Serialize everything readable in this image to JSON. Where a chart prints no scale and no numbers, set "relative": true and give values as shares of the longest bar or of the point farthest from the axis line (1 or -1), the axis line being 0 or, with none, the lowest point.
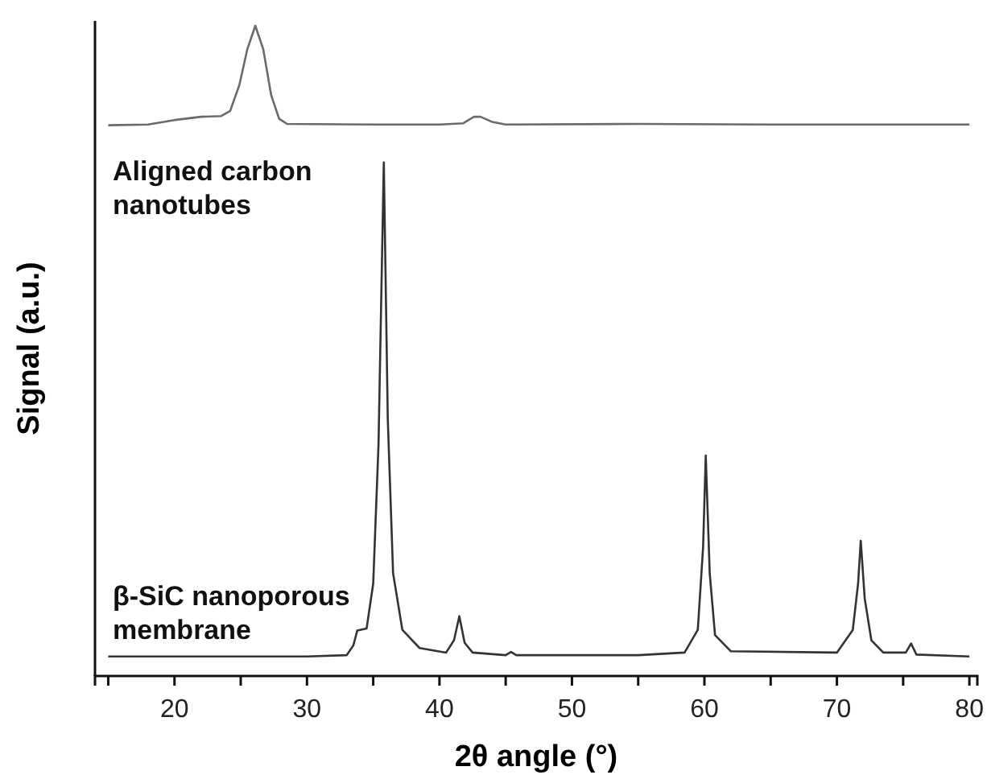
{
  "chart_data": {
    "type": "line",
    "relative": true,
    "xlabel": "2θ angle (°)",
    "ylabel": "Signal (a.u.)",
    "xlim": [
      14,
      80.6
    ],
    "xticks": [
      {
        "value": 15,
        "label": null
      },
      20,
      {
        "value": 25,
        "label": null
      },
      30,
      {
        "value": 35,
        "label": null
      },
      40,
      {
        "value": 45,
        "label": null
      },
      50,
      {
        "value": 55,
        "label": null
      },
      60,
      {
        "value": 65,
        "label": null
      },
      70,
      {
        "value": 75,
        "label": null
      },
      80
    ],
    "marker": "none",
    "line_style": "solid",
    "series": [
      {
        "name": "Aligned carbon nanotubes",
        "color": "#6a6a6a",
        "x": [
          15,
          18,
          20,
          22,
          23.5,
          24.2,
          24.9,
          25.5,
          26.1,
          26.7,
          27.3,
          27.9,
          28.5,
          35,
          40,
          41.8,
          42.6,
          43.1,
          44,
          45,
          55,
          65,
          80
        ],
        "values": [
          0.847,
          0.848,
          0.855,
          0.86,
          0.861,
          0.869,
          0.909,
          0.964,
          1.0,
          0.964,
          0.893,
          0.857,
          0.849,
          0.848,
          0.848,
          0.85,
          0.86,
          0.86,
          0.852,
          0.848,
          0.849,
          0.848,
          0.848
        ]
      },
      {
        "name": "β-SiC nanoporous membrane",
        "color": "#333333",
        "x": [
          15,
          30,
          33,
          33.5,
          33.8,
          34.5,
          35.0,
          35.4,
          35.8,
          36.1,
          36.5,
          37.2,
          38.5,
          40.5,
          41.1,
          41.5,
          41.9,
          42.5,
          45,
          45.4,
          45.8,
          55,
          58.5,
          59.5,
          59.9,
          60.1,
          60.4,
          60.8,
          62,
          70,
          71.2,
          71.6,
          71.8,
          72.1,
          72.6,
          73.5,
          75.2,
          75.6,
          76.0,
          80
        ],
        "values": [
          0.03,
          0.03,
          0.032,
          0.047,
          0.07,
          0.073,
          0.142,
          0.356,
          0.79,
          0.395,
          0.158,
          0.071,
          0.043,
          0.036,
          0.055,
          0.092,
          0.051,
          0.036,
          0.032,
          0.037,
          0.032,
          0.032,
          0.036,
          0.071,
          0.198,
          0.339,
          0.158,
          0.063,
          0.038,
          0.036,
          0.071,
          0.142,
          0.208,
          0.119,
          0.055,
          0.036,
          0.036,
          0.05,
          0.033,
          0.03
        ]
      }
    ]
  }
}
